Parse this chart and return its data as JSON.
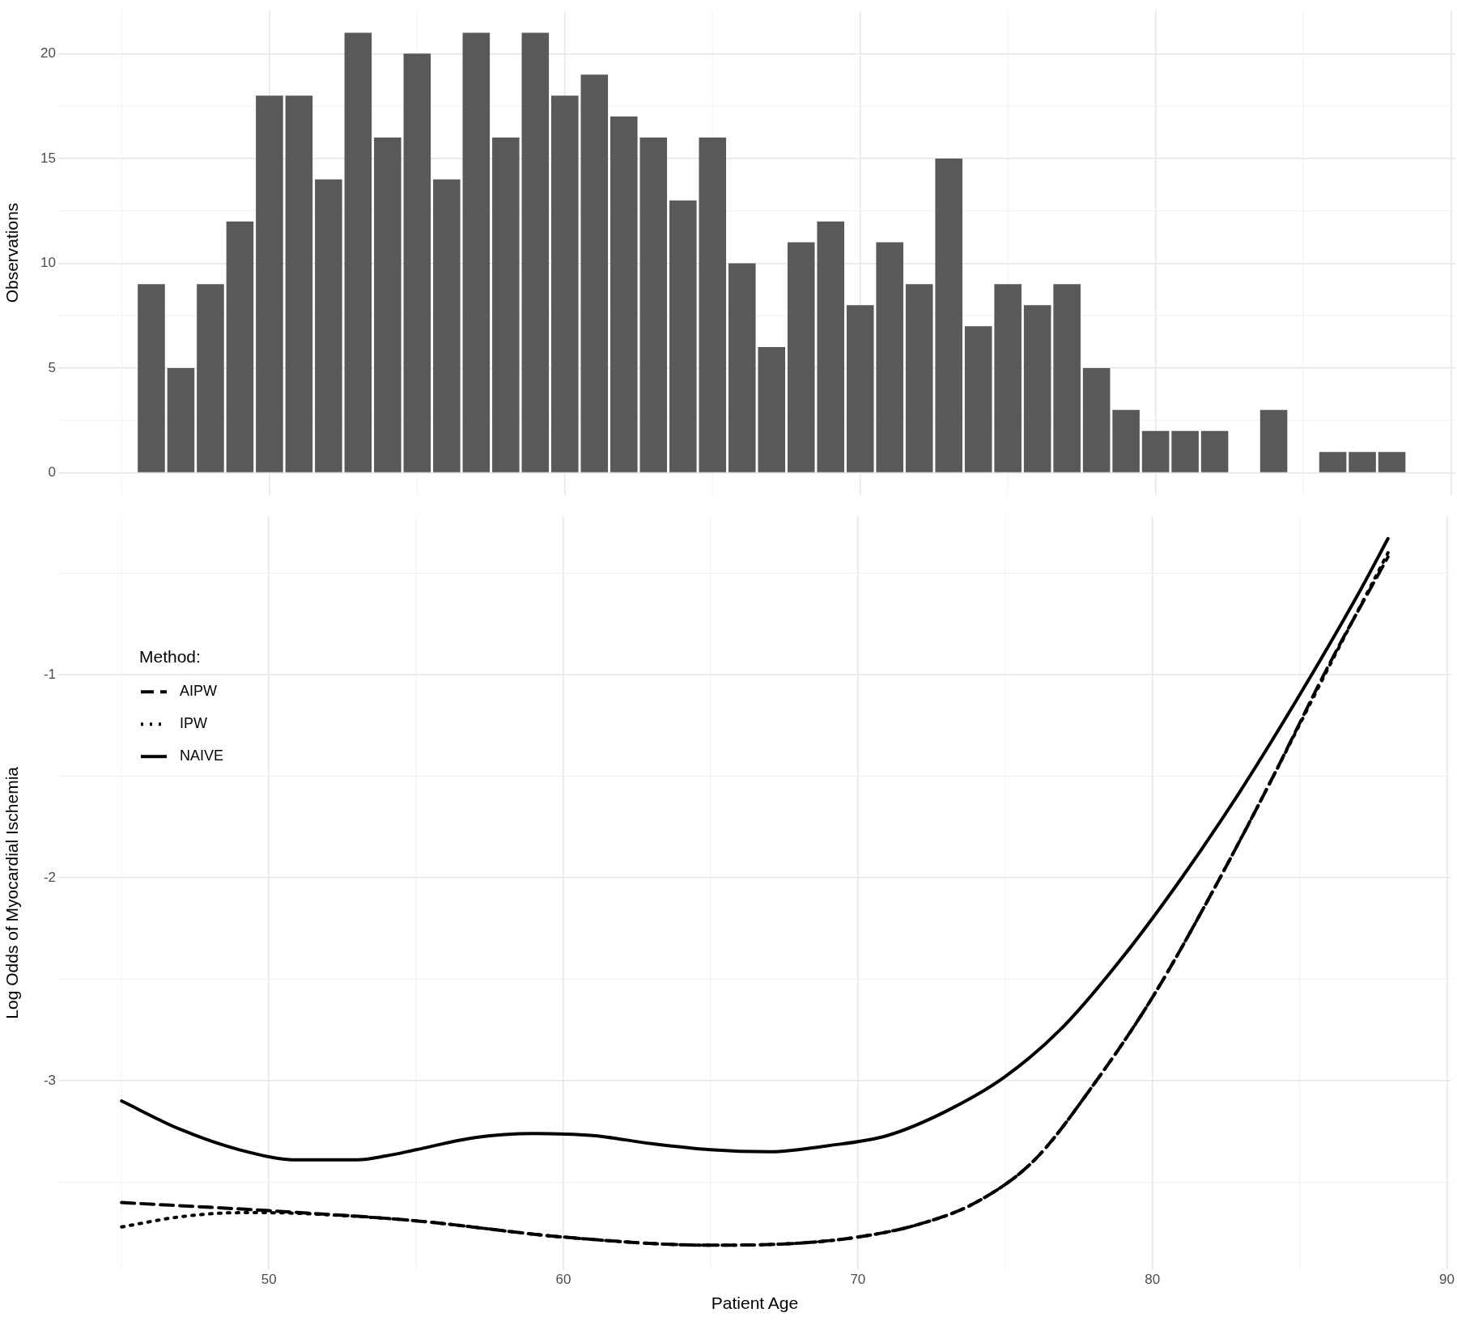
{
  "chart_data": [
    {
      "type": "histogram",
      "ylabel": "Observations",
      "bins": [
        45.5,
        46.5,
        47.5,
        48.5,
        49.5,
        50.5,
        51.5,
        52.5,
        53.5,
        54.5,
        55.5,
        56.5,
        57.5,
        58.5,
        59.5,
        60.5,
        61.5,
        62.5,
        63.5,
        64.5,
        65.5,
        66.5,
        67.5,
        68.5,
        69.5,
        70.5,
        71.5,
        72.5,
        73.5,
        74.5,
        75.5,
        76.5,
        77.5,
        78.5,
        79.5,
        80.5,
        81.5,
        82.5,
        83.5,
        84.5,
        85.5,
        86.5,
        87.5,
        88.5
      ],
      "values": [
        9,
        5,
        9,
        12,
        18,
        18,
        14,
        21,
        16,
        20,
        14,
        21,
        16,
        21,
        18,
        19,
        17,
        16,
        13,
        16,
        10,
        6,
        11,
        12,
        8,
        11,
        9,
        15,
        7,
        9,
        8,
        9,
        5,
        3,
        2,
        2,
        2,
        0,
        3,
        0,
        1,
        1,
        1
      ],
      "color": "#595959",
      "xlim": [
        42.85,
        90.15
      ],
      "xticks": [
        50,
        60,
        70,
        80,
        90
      ],
      "ylim": [
        -1.05,
        22.05
      ],
      "yticks": [
        0,
        5,
        10,
        15,
        20
      ],
      "grid": true,
      "tick_labels": "y"
    },
    {
      "type": "line",
      "xlabel": "Patient Age",
      "ylabel": "Log Odds of Myocardial Ischemia",
      "legend_title": "Method:",
      "legend": "top left",
      "grid": true,
      "xlim": [
        42.85,
        90.15
      ],
      "xticks": [
        50,
        60,
        70,
        80,
        90
      ],
      "ylim": [
        -3.93,
        -0.22
      ],
      "yticks": [
        -3,
        -2,
        -1
      ],
      "series": [
        {
          "name": "AIPW",
          "color": "#000000",
          "line_style": "dashed",
          "x": [
            45,
            50,
            55,
            60,
            65,
            68,
            70,
            72,
            74,
            76,
            78,
            80,
            82,
            84,
            86,
            88
          ],
          "values": [
            -3.6,
            -3.64,
            -3.69,
            -3.77,
            -3.81,
            -3.8,
            -3.77,
            -3.71,
            -3.6,
            -3.39,
            -3.02,
            -2.59,
            -2.08,
            -1.53,
            -0.95,
            -0.42
          ]
        },
        {
          "name": "IPW",
          "color": "#000000",
          "line_style": "dotted",
          "x": [
            45,
            47,
            49,
            50,
            52,
            55,
            60,
            65,
            68,
            70,
            72,
            74,
            76,
            78,
            80,
            82,
            84,
            86,
            88
          ],
          "values": [
            -3.72,
            -3.67,
            -3.65,
            -3.65,
            -3.66,
            -3.69,
            -3.77,
            -3.81,
            -3.8,
            -3.77,
            -3.71,
            -3.6,
            -3.39,
            -3.02,
            -2.59,
            -2.08,
            -1.53,
            -0.96,
            -0.4
          ]
        },
        {
          "name": "NAIVE",
          "color": "#000000",
          "line_style": "solid",
          "x": [
            45,
            47,
            49,
            51,
            53,
            54,
            55,
            57,
            59,
            61,
            63,
            65,
            67,
            69,
            71,
            73,
            75,
            77,
            79,
            81,
            83,
            85,
            87,
            88
          ],
          "values": [
            -3.1,
            -3.24,
            -3.34,
            -3.39,
            -3.39,
            -3.37,
            -3.34,
            -3.28,
            -3.26,
            -3.27,
            -3.31,
            -3.34,
            -3.35,
            -3.32,
            -3.27,
            -3.15,
            -2.98,
            -2.73,
            -2.39,
            -2.0,
            -1.57,
            -1.1,
            -0.6,
            -0.33
          ]
        }
      ]
    }
  ]
}
